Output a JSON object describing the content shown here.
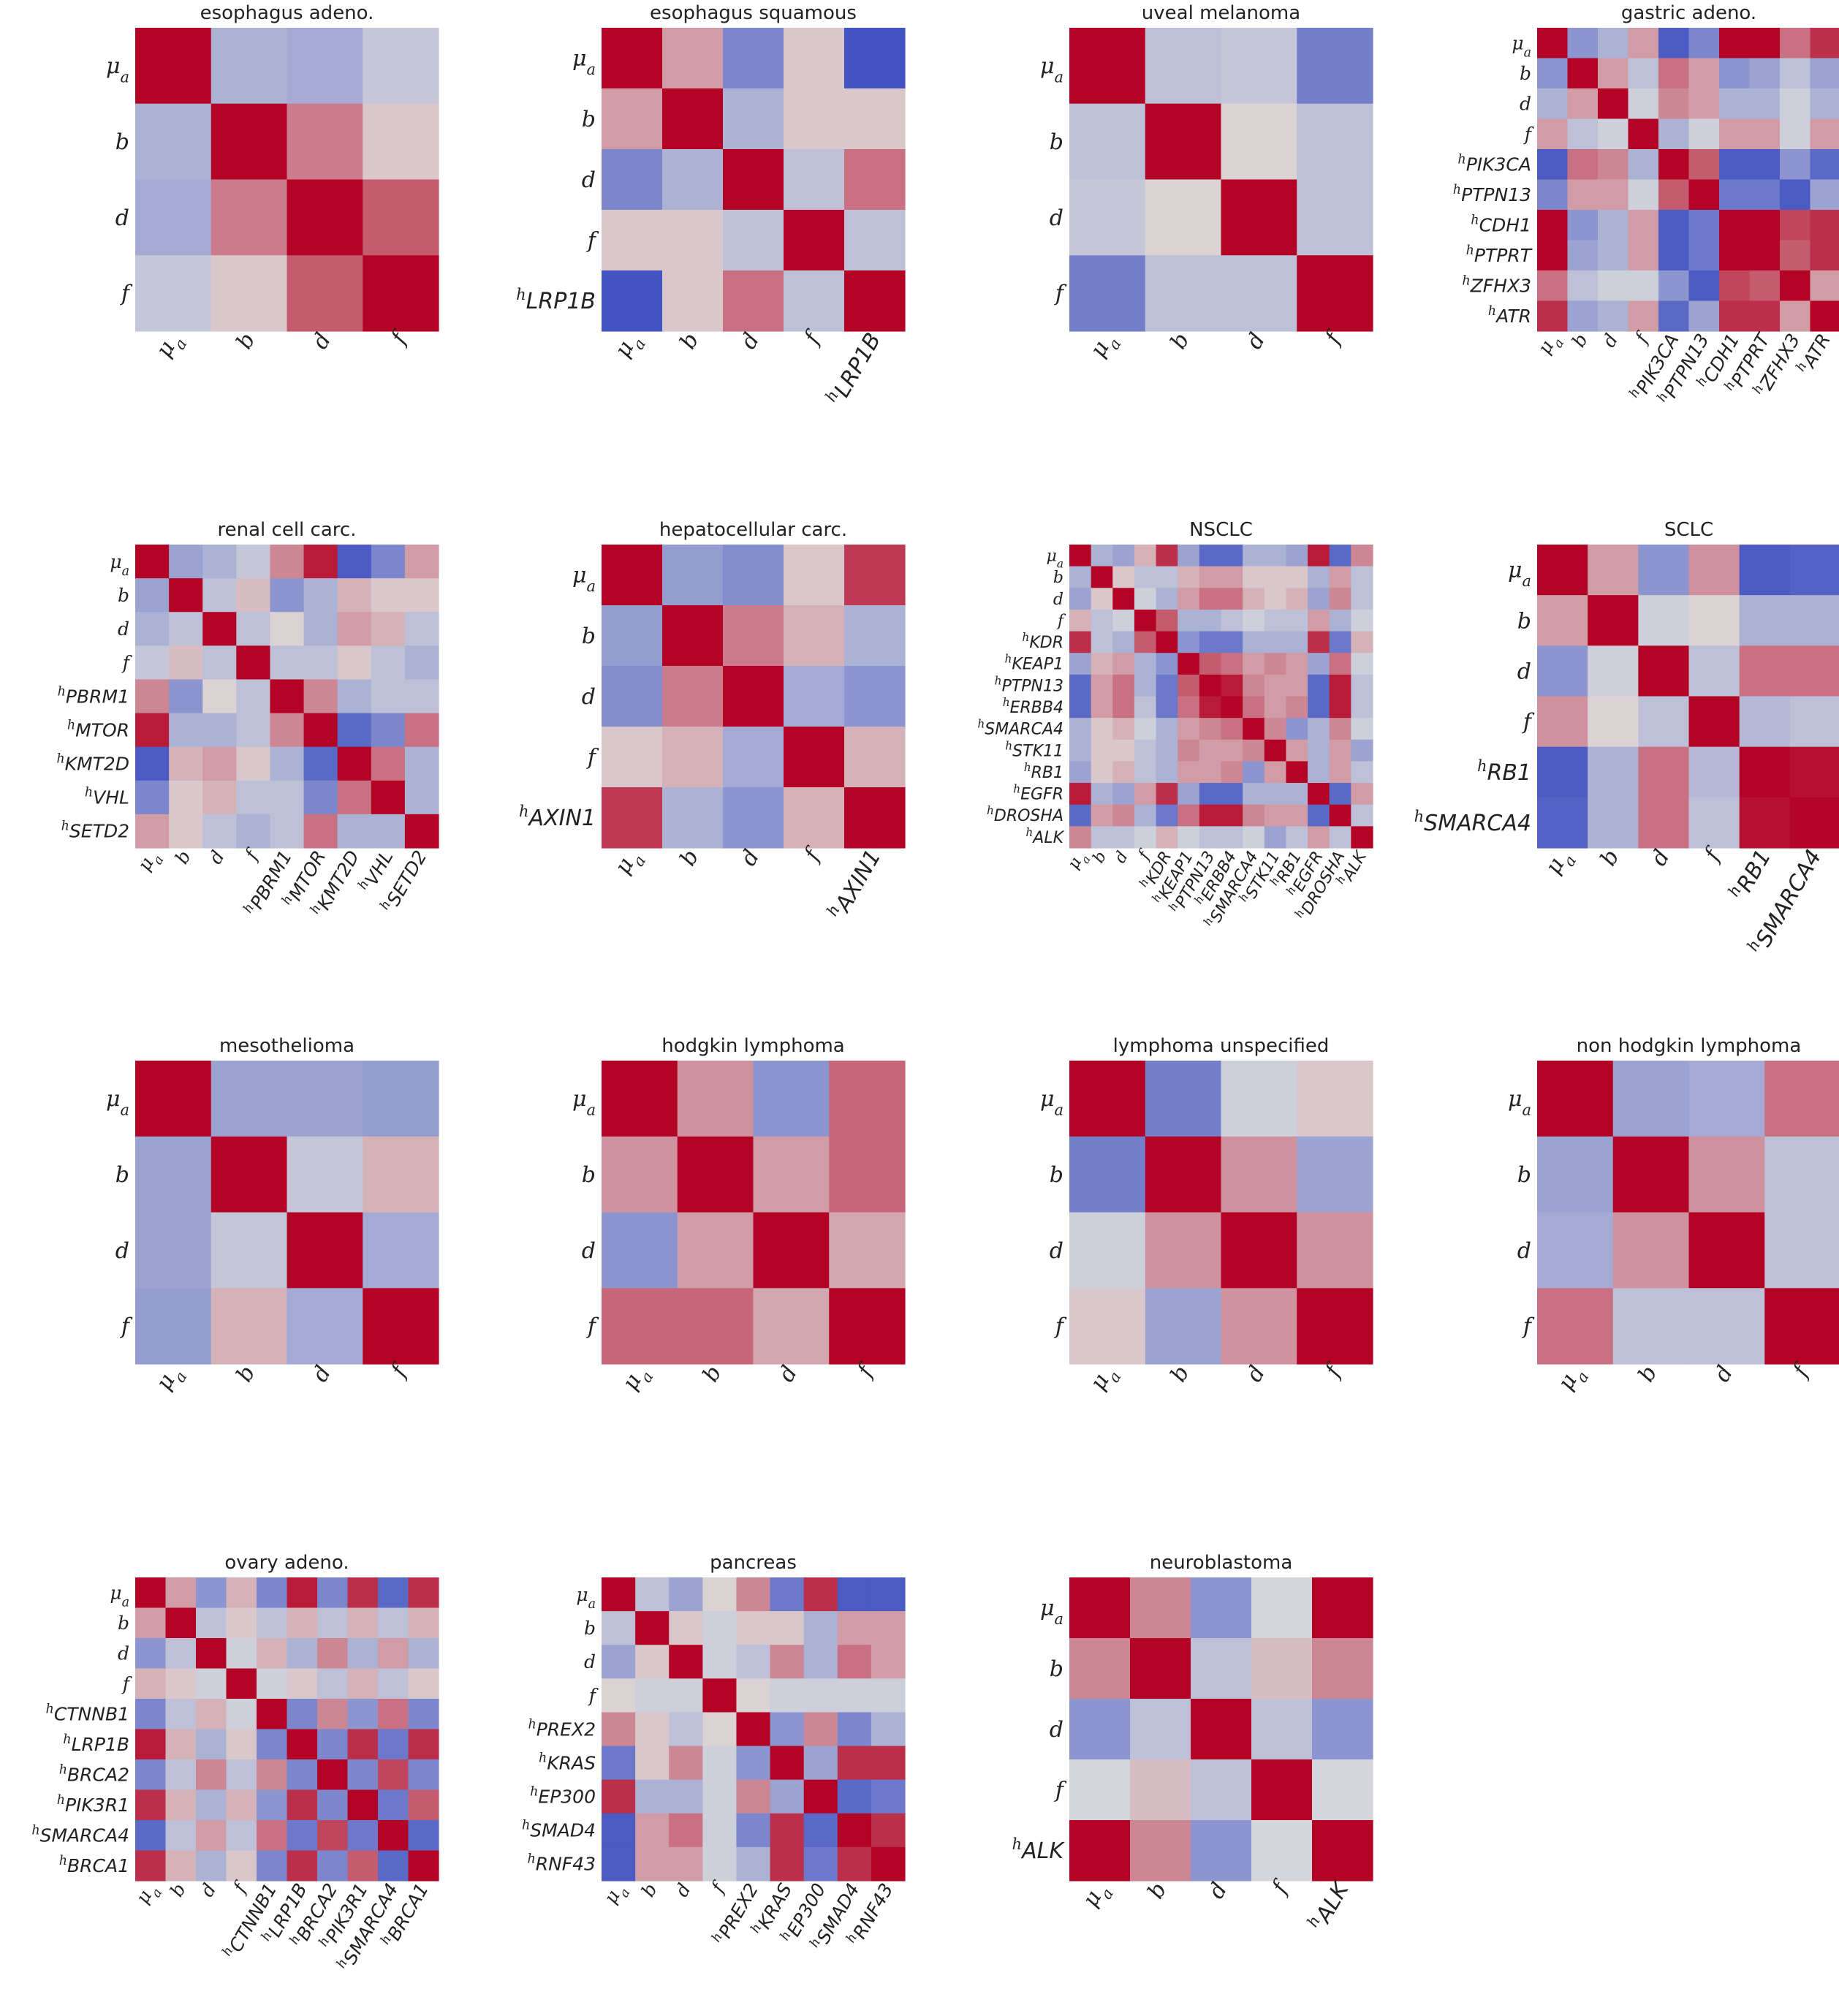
{
  "figure": {
    "colormap": "coolwarm",
    "color_low": "#3b4cc0",
    "color_mid": "#dddddd",
    "color_high": "#b40426"
  },
  "chart_data": [
    {
      "type": "heatmap",
      "title": "esophagus adeno.",
      "labels": [
        "μa",
        "b",
        "d",
        "f"
      ],
      "matrix": [
        [
          1,
          -0.3,
          -0.35,
          -0.15
        ],
        [
          -0.3,
          1,
          0.45,
          0.1
        ],
        [
          -0.35,
          0.45,
          1,
          0.6
        ],
        [
          -0.15,
          0.1,
          0.6,
          1
        ]
      ]
    },
    {
      "type": "heatmap",
      "title": "esophagus squamous",
      "labels": [
        "μa",
        "b",
        "d",
        "f",
        "hLRP1B"
      ],
      "matrix": [
        [
          1,
          0.3,
          -0.6,
          0.1,
          -0.95
        ],
        [
          0.3,
          1,
          -0.3,
          0.1,
          0.1
        ],
        [
          -0.6,
          -0.3,
          1,
          -0.2,
          0.5
        ],
        [
          0.1,
          0.1,
          -0.2,
          1,
          -0.2
        ],
        [
          -0.95,
          0.1,
          0.5,
          -0.2,
          1
        ]
      ]
    },
    {
      "type": "heatmap",
      "title": "uveal melanoma",
      "labels": [
        "μa",
        "b",
        "d",
        "f"
      ],
      "matrix": [
        [
          1,
          -0.2,
          -0.15,
          -0.65
        ],
        [
          -0.2,
          1,
          0.05,
          -0.2
        ],
        [
          -0.15,
          0.05,
          1,
          -0.2
        ],
        [
          -0.65,
          -0.2,
          -0.2,
          1
        ]
      ]
    },
    {
      "type": "heatmap",
      "title": "gastric adeno.",
      "labels": [
        "μa",
        "b",
        "d",
        "f",
        "hPIK3CA",
        "hPTPN13",
        "hCDH1",
        "hPTPRT",
        "hZFHX3",
        "hATR"
      ],
      "matrix": [
        [
          1,
          -0.5,
          -0.3,
          0.3,
          -0.9,
          -0.6,
          1,
          1,
          0.5,
          0.8
        ],
        [
          -0.5,
          1,
          0.3,
          -0.2,
          0.5,
          0.3,
          -0.5,
          -0.4,
          -0.2,
          -0.4
        ],
        [
          -0.3,
          0.3,
          1,
          -0.1,
          0.4,
          0.3,
          -0.3,
          -0.3,
          -0.1,
          -0.3
        ],
        [
          0.3,
          -0.2,
          -0.1,
          1,
          -0.3,
          -0.1,
          0.3,
          0.3,
          -0.1,
          0.3
        ],
        [
          -0.9,
          0.5,
          0.4,
          -0.3,
          1,
          0.6,
          -0.9,
          -0.9,
          -0.5,
          -0.8
        ],
        [
          -0.6,
          0.3,
          0.3,
          -0.1,
          0.6,
          1,
          -0.7,
          -0.7,
          -0.9,
          -0.4
        ],
        [
          1,
          -0.5,
          -0.3,
          0.3,
          -0.9,
          -0.7,
          1,
          1,
          0.7,
          0.8
        ],
        [
          1,
          -0.4,
          -0.3,
          0.3,
          -0.9,
          -0.7,
          1,
          1,
          0.6,
          0.8
        ],
        [
          0.5,
          -0.2,
          -0.1,
          -0.1,
          -0.5,
          -0.9,
          0.7,
          0.6,
          1,
          0.3
        ],
        [
          0.8,
          -0.4,
          -0.3,
          0.3,
          -0.8,
          -0.4,
          0.8,
          0.8,
          0.3,
          1
        ]
      ]
    },
    {
      "type": "heatmap",
      "title": "renal cell carc.",
      "labels": [
        "μa",
        "b",
        "d",
        "f",
        "hPBRM1",
        "hMTOR",
        "hKMT2D",
        "hVHL",
        "hSETD2"
      ],
      "matrix": [
        [
          1,
          -0.4,
          -0.3,
          -0.15,
          0.4,
          0.9,
          -0.9,
          -0.6,
          0.3
        ],
        [
          -0.4,
          1,
          -0.2,
          0.15,
          -0.5,
          -0.3,
          0.2,
          0.1,
          0.1
        ],
        [
          -0.3,
          -0.2,
          1,
          -0.2,
          0.05,
          -0.3,
          0.3,
          0.2,
          -0.2
        ],
        [
          -0.15,
          0.15,
          -0.2,
          1,
          -0.2,
          -0.2,
          0.1,
          -0.2,
          -0.3
        ],
        [
          0.4,
          -0.5,
          0.05,
          -0.2,
          1,
          0.4,
          -0.3,
          -0.2,
          -0.2
        ],
        [
          0.9,
          -0.3,
          -0.3,
          -0.2,
          0.4,
          1,
          -0.8,
          -0.6,
          0.5
        ],
        [
          -0.9,
          0.2,
          0.3,
          0.1,
          -0.3,
          -0.8,
          1,
          0.5,
          -0.3
        ],
        [
          -0.6,
          0.1,
          0.2,
          -0.2,
          -0.2,
          -0.6,
          0.5,
          1,
          -0.3
        ],
        [
          0.3,
          0.1,
          -0.2,
          -0.3,
          -0.2,
          0.5,
          -0.3,
          -0.3,
          1
        ]
      ]
    },
    {
      "type": "heatmap",
      "title": "hepatocellular carc.",
      "labels": [
        "μa",
        "b",
        "d",
        "f",
        "hAXIN1"
      ],
      "matrix": [
        [
          1,
          -0.45,
          -0.55,
          0.1,
          0.75
        ],
        [
          -0.45,
          1,
          0.45,
          0.2,
          -0.3
        ],
        [
          -0.55,
          0.45,
          1,
          -0.35,
          -0.5
        ],
        [
          0.1,
          0.2,
          -0.35,
          1,
          0.2
        ],
        [
          0.75,
          -0.3,
          -0.5,
          0.2,
          1
        ]
      ]
    },
    {
      "type": "heatmap",
      "title": "NSCLC",
      "labels": [
        "μa",
        "b",
        "d",
        "f",
        "hKDR",
        "hKEAP1",
        "hPTPN13",
        "hERBB4",
        "hSMARCA4",
        "hSTK11",
        "hRB1",
        "hEGFR",
        "hDROSHA",
        "hALK"
      ],
      "matrix": [
        [
          1,
          -0.3,
          -0.4,
          0.2,
          0.8,
          -0.4,
          -0.8,
          -0.8,
          -0.3,
          -0.3,
          -0.4,
          0.9,
          -0.8,
          0.4
        ],
        [
          -0.3,
          1,
          0.1,
          -0.2,
          -0.2,
          0.2,
          0.3,
          0.3,
          0.1,
          0.1,
          0.1,
          -0.3,
          0.3,
          -0.2
        ],
        [
          -0.4,
          0.1,
          1,
          -0.1,
          -0.3,
          0.3,
          0.5,
          0.5,
          0.2,
          0.1,
          0.2,
          -0.4,
          0.4,
          -0.2
        ],
        [
          0.2,
          -0.2,
          -0.1,
          1,
          0.6,
          -0.3,
          -0.3,
          -0.2,
          -0.1,
          -0.2,
          -0.2,
          0.3,
          -0.3,
          -0.1
        ],
        [
          0.8,
          -0.2,
          -0.3,
          0.6,
          1,
          -0.5,
          -0.7,
          -0.7,
          -0.3,
          -0.3,
          -0.3,
          0.8,
          -0.7,
          0.2
        ],
        [
          -0.4,
          0.2,
          0.3,
          -0.3,
          -0.5,
          1,
          0.6,
          0.5,
          0.3,
          0.4,
          0.3,
          -0.4,
          0.5,
          -0.1
        ],
        [
          -0.8,
          0.3,
          0.5,
          -0.3,
          -0.7,
          0.6,
          1,
          0.9,
          0.4,
          0.3,
          0.3,
          -0.8,
          0.9,
          -0.2
        ],
        [
          -0.8,
          0.3,
          0.5,
          -0.2,
          -0.7,
          0.5,
          0.9,
          1,
          0.5,
          0.3,
          0.4,
          -0.8,
          0.9,
          -0.2
        ],
        [
          -0.3,
          0.1,
          0.2,
          -0.1,
          -0.3,
          0.3,
          0.4,
          0.5,
          1,
          0.4,
          -0.5,
          -0.3,
          0.4,
          -0.1
        ],
        [
          -0.3,
          0.1,
          0.1,
          -0.2,
          -0.3,
          0.4,
          0.3,
          0.3,
          0.4,
          1,
          0.3,
          -0.3,
          0.3,
          -0.4
        ],
        [
          -0.4,
          0.1,
          0.2,
          -0.2,
          -0.3,
          0.3,
          0.3,
          0.4,
          -0.5,
          0.3,
          1,
          -0.3,
          0.3,
          -0.2
        ],
        [
          0.9,
          -0.3,
          -0.4,
          0.3,
          0.8,
          -0.4,
          -0.8,
          -0.8,
          -0.3,
          -0.3,
          -0.3,
          1,
          -0.8,
          0.3
        ],
        [
          -0.8,
          0.3,
          0.4,
          -0.3,
          -0.7,
          0.5,
          0.9,
          0.9,
          0.4,
          0.3,
          0.3,
          -0.8,
          1,
          -0.2
        ],
        [
          0.4,
          -0.2,
          -0.2,
          -0.1,
          0.2,
          -0.1,
          -0.2,
          -0.2,
          -0.1,
          -0.4,
          -0.2,
          0.3,
          -0.2,
          1
        ]
      ]
    },
    {
      "type": "heatmap",
      "title": "SCLC",
      "labels": [
        "μa",
        "b",
        "d",
        "f",
        "hRB1",
        "hSMARCA4"
      ],
      "matrix": [
        [
          1,
          0.3,
          -0.5,
          0.35,
          -0.9,
          -0.85
        ],
        [
          0.3,
          1,
          -0.1,
          0.05,
          -0.3,
          -0.3
        ],
        [
          -0.5,
          -0.1,
          1,
          -0.2,
          0.5,
          0.5
        ],
        [
          0.35,
          0.05,
          -0.2,
          1,
          -0.25,
          -0.2
        ],
        [
          -0.9,
          -0.3,
          0.5,
          -0.25,
          1,
          0.95
        ],
        [
          -0.85,
          -0.3,
          0.5,
          -0.2,
          0.95,
          1
        ]
      ]
    },
    {
      "type": "heatmap",
      "title": "mesothelioma",
      "labels": [
        "μa",
        "b",
        "d",
        "f"
      ],
      "matrix": [
        [
          1,
          -0.4,
          -0.4,
          -0.45
        ],
        [
          -0.4,
          1,
          -0.15,
          0.2
        ],
        [
          -0.4,
          -0.15,
          1,
          -0.35
        ],
        [
          -0.45,
          0.2,
          -0.35,
          1
        ]
      ]
    },
    {
      "type": "heatmap",
      "title": "hodgkin lymphoma",
      "labels": [
        "μa",
        "b",
        "d",
        "f"
      ],
      "matrix": [
        [
          1,
          0.35,
          -0.5,
          0.55
        ],
        [
          0.35,
          1,
          0.3,
          0.55
        ],
        [
          -0.5,
          0.3,
          1,
          0.25
        ],
        [
          0.55,
          0.55,
          0.25,
          1
        ]
      ]
    },
    {
      "type": "heatmap",
      "title": "lymphoma unspecified",
      "labels": [
        "μa",
        "b",
        "d",
        "f"
      ],
      "matrix": [
        [
          1,
          -0.65,
          -0.1,
          0.1
        ],
        [
          -0.65,
          1,
          0.35,
          -0.4
        ],
        [
          -0.1,
          0.35,
          1,
          0.35
        ],
        [
          0.1,
          -0.4,
          0.35,
          1
        ]
      ]
    },
    {
      "type": "heatmap",
      "title": "non hodgkin lymphoma",
      "labels": [
        "μa",
        "b",
        "d",
        "f"
      ],
      "matrix": [
        [
          1,
          -0.4,
          -0.35,
          0.5
        ],
        [
          -0.4,
          1,
          0.35,
          -0.2
        ],
        [
          -0.35,
          0.35,
          1,
          -0.2
        ],
        [
          0.5,
          -0.2,
          -0.2,
          1
        ]
      ]
    },
    {
      "type": "heatmap",
      "title": "ovary adeno.",
      "labels": [
        "μa",
        "b",
        "d",
        "f",
        "hCTNNB1",
        "hLRP1B",
        "hBRCA2",
        "hPIK3R1",
        "hSMARCA4",
        "hBRCA1"
      ],
      "matrix": [
        [
          1,
          0.3,
          -0.5,
          0.2,
          -0.6,
          0.9,
          -0.6,
          0.8,
          -0.8,
          0.8
        ],
        [
          0.3,
          1,
          -0.2,
          0.1,
          -0.2,
          0.2,
          -0.2,
          0.2,
          -0.2,
          0.2
        ],
        [
          -0.5,
          -0.2,
          1,
          -0.1,
          0.2,
          -0.3,
          0.4,
          -0.3,
          0.3,
          -0.3
        ],
        [
          0.2,
          0.1,
          -0.1,
          1,
          -0.1,
          0.1,
          -0.2,
          0.2,
          -0.2,
          0.1
        ],
        [
          -0.6,
          -0.2,
          0.2,
          -0.1,
          1,
          -0.6,
          0.4,
          -0.5,
          0.5,
          -0.6
        ],
        [
          0.9,
          0.2,
          -0.3,
          0.1,
          -0.6,
          1,
          -0.6,
          0.8,
          -0.7,
          0.8
        ],
        [
          -0.6,
          -0.2,
          0.4,
          -0.2,
          0.4,
          -0.6,
          1,
          -0.6,
          0.7,
          -0.6
        ],
        [
          0.8,
          0.2,
          -0.3,
          0.2,
          -0.5,
          0.8,
          -0.6,
          1,
          -0.7,
          0.6
        ],
        [
          -0.8,
          -0.2,
          0.3,
          -0.2,
          0.5,
          -0.7,
          0.7,
          -0.7,
          1,
          -0.8
        ],
        [
          0.8,
          0.2,
          -0.3,
          0.1,
          -0.6,
          0.8,
          -0.6,
          0.6,
          -0.8,
          1
        ]
      ]
    },
    {
      "type": "heatmap",
      "title": "pancreas",
      "labels": [
        "μa",
        "b",
        "d",
        "f",
        "hPREX2",
        "hKRAS",
        "hEP300",
        "hSMAD4",
        "hRNF43"
      ],
      "matrix": [
        [
          1,
          -0.2,
          -0.4,
          0.05,
          0.4,
          -0.7,
          0.8,
          -0.9,
          -0.9
        ],
        [
          -0.2,
          1,
          0.1,
          -0.1,
          0.1,
          0.1,
          -0.3,
          0.3,
          0.3
        ],
        [
          -0.4,
          0.1,
          1,
          -0.1,
          -0.2,
          0.4,
          -0.3,
          0.5,
          0.3
        ],
        [
          0.05,
          -0.1,
          -0.1,
          1,
          0.05,
          -0.1,
          -0.1,
          -0.1,
          -0.1
        ],
        [
          0.4,
          0.1,
          -0.2,
          0.05,
          1,
          -0.5,
          0.4,
          -0.6,
          -0.3
        ],
        [
          -0.7,
          0.1,
          0.4,
          -0.1,
          -0.5,
          1,
          -0.4,
          0.8,
          0.8
        ],
        [
          0.8,
          -0.3,
          -0.3,
          -0.1,
          0.4,
          -0.4,
          1,
          -0.8,
          -0.7
        ],
        [
          -0.9,
          0.3,
          0.5,
          -0.1,
          -0.6,
          0.8,
          -0.8,
          1,
          0.8
        ],
        [
          -0.9,
          0.3,
          0.3,
          -0.1,
          -0.3,
          0.8,
          -0.7,
          0.8,
          1
        ]
      ]
    },
    {
      "type": "heatmap",
      "title": "neuroblastoma",
      "labels": [
        "μa",
        "b",
        "d",
        "f",
        "hALK"
      ],
      "matrix": [
        [
          1,
          0.4,
          -0.5,
          -0.05,
          1
        ],
        [
          0.4,
          1,
          -0.2,
          0.15,
          0.4
        ],
        [
          -0.5,
          -0.2,
          1,
          -0.2,
          -0.5
        ],
        [
          -0.05,
          0.15,
          -0.2,
          1,
          -0.05
        ],
        [
          1,
          0.4,
          -0.5,
          -0.05,
          1
        ]
      ]
    }
  ]
}
